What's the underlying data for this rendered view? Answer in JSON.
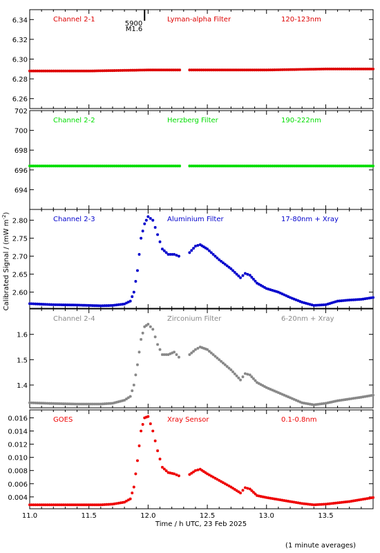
{
  "figure": {
    "ylabel": "Calibrated Signal / (mW m",
    "ylabel_sup": "-2",
    "ylabel_tail": ")",
    "xlabel": "Time / h UTC, 23 Feb 2025",
    "footnote": "(1 minute averages)",
    "marker_label_1": "5900",
    "marker_label_2": "M1.6",
    "marker_time": 11.97,
    "xlim": [
      11.0,
      13.9
    ],
    "xticks": [
      "11.0",
      "11.5",
      "12.0",
      "12.5",
      "13.0",
      "13.5"
    ],
    "data_gap": [
      12.27,
      12.35
    ]
  },
  "chart_data": [
    {
      "type": "scatter",
      "channel_label": "Channel 2-1",
      "filter_label": "Lyman-alpha Filter",
      "band_label": "120-123nm",
      "color": "#dd0000",
      "ylim": [
        6.25,
        6.35
      ],
      "yticks": [
        "6.26",
        "6.28",
        "6.30",
        "6.32",
        "6.34"
      ],
      "x": [
        11.0,
        11.5,
        12.0,
        12.25,
        12.35,
        13.0,
        13.5,
        13.9
      ],
      "y": [
        6.288,
        6.288,
        6.289,
        6.289,
        6.289,
        6.289,
        6.29,
        6.29
      ]
    },
    {
      "type": "scatter",
      "channel_label": "Channel 2-2",
      "filter_label": "Herzberg Filter",
      "band_label": "190-222nm",
      "color": "#00dd00",
      "ylim": [
        692,
        702
      ],
      "yticks": [
        "694",
        "696",
        "698",
        "700",
        "702"
      ],
      "x": [
        11.0,
        11.5,
        12.0,
        12.25,
        12.35,
        13.0,
        13.5,
        13.9
      ],
      "y": [
        696.4,
        696.4,
        696.4,
        696.4,
        696.4,
        696.4,
        696.4,
        696.4
      ]
    },
    {
      "type": "scatter",
      "channel_label": "Channel 2-3",
      "filter_label": "Aluminium Filter",
      "band_label": "17-80nm + Xray",
      "color": "#0000cc",
      "ylim": [
        2.555,
        2.83
      ],
      "yticks": [
        "2.60",
        "2.65",
        "2.70",
        "2.75",
        "2.80"
      ],
      "x": [
        11.0,
        11.2,
        11.4,
        11.6,
        11.7,
        11.8,
        11.85,
        11.88,
        11.91,
        11.94,
        11.97,
        12.0,
        12.04,
        12.08,
        12.12,
        12.17,
        12.22,
        12.26,
        12.35,
        12.4,
        12.44,
        12.5,
        12.6,
        12.7,
        12.78,
        12.82,
        12.86,
        12.92,
        13.0,
        13.1,
        13.2,
        13.3,
        13.4,
        13.5,
        13.6,
        13.7,
        13.8,
        13.9
      ],
      "y": [
        2.568,
        2.565,
        2.564,
        2.562,
        2.563,
        2.567,
        2.575,
        2.6,
        2.66,
        2.75,
        2.79,
        2.81,
        2.8,
        2.76,
        2.72,
        2.705,
        2.705,
        2.7,
        2.71,
        2.728,
        2.732,
        2.72,
        2.69,
        2.665,
        2.64,
        2.652,
        2.647,
        2.625,
        2.61,
        2.6,
        2.585,
        2.572,
        2.563,
        2.565,
        2.575,
        2.578,
        2.58,
        2.585
      ]
    },
    {
      "type": "scatter",
      "channel_label": "Channel 2-4",
      "filter_label": "Zirconium Filter",
      "band_label": "6-20nm + Xray",
      "color": "#888888",
      "ylim": [
        1.31,
        1.7
      ],
      "yticks": [
        "1.4",
        "1.5",
        "1.6"
      ],
      "x": [
        11.0,
        11.2,
        11.4,
        11.6,
        11.7,
        11.8,
        11.85,
        11.88,
        11.91,
        11.94,
        11.97,
        12.0,
        12.04,
        12.08,
        12.12,
        12.17,
        12.22,
        12.26,
        12.35,
        12.4,
        12.44,
        12.5,
        12.6,
        12.7,
        12.78,
        12.82,
        12.86,
        12.92,
        13.0,
        13.1,
        13.2,
        13.3,
        13.4,
        13.5,
        13.6,
        13.7,
        13.8,
        13.9
      ],
      "y": [
        1.33,
        1.327,
        1.325,
        1.325,
        1.328,
        1.34,
        1.355,
        1.4,
        1.48,
        1.58,
        1.63,
        1.64,
        1.62,
        1.56,
        1.52,
        1.52,
        1.53,
        1.51,
        1.52,
        1.54,
        1.55,
        1.54,
        1.5,
        1.46,
        1.42,
        1.445,
        1.44,
        1.41,
        1.39,
        1.37,
        1.35,
        1.33,
        1.322,
        1.328,
        1.338,
        1.345,
        1.352,
        1.36
      ]
    },
    {
      "type": "scatter",
      "channel_label": "GOES",
      "filter_label": "Xray Sensor",
      "band_label": "0.1-0.8nm",
      "color": "#ee0000",
      "ylim": [
        0.0022,
        0.0172
      ],
      "yticks": [
        "0.004",
        "0.006",
        "0.008",
        "0.010",
        "0.012",
        "0.014",
        "0.016"
      ],
      "x": [
        11.0,
        11.2,
        11.4,
        11.6,
        11.7,
        11.8,
        11.85,
        11.88,
        11.91,
        11.94,
        11.97,
        12.0,
        12.04,
        12.08,
        12.12,
        12.17,
        12.22,
        12.26,
        12.35,
        12.4,
        12.44,
        12.5,
        12.6,
        12.7,
        12.78,
        12.82,
        12.86,
        12.92,
        13.0,
        13.1,
        13.2,
        13.3,
        13.4,
        13.5,
        13.6,
        13.7,
        13.8,
        13.9
      ],
      "y": [
        0.0028,
        0.0028,
        0.0028,
        0.0028,
        0.0029,
        0.0032,
        0.0037,
        0.0055,
        0.0095,
        0.014,
        0.016,
        0.0162,
        0.014,
        0.011,
        0.0085,
        0.0077,
        0.0075,
        0.0072,
        0.0074,
        0.008,
        0.0082,
        0.0075,
        0.0065,
        0.0055,
        0.0046,
        0.0054,
        0.0052,
        0.0042,
        0.0039,
        0.0036,
        0.0033,
        0.003,
        0.0028,
        0.0029,
        0.0031,
        0.0033,
        0.0036,
        0.0039
      ]
    }
  ]
}
